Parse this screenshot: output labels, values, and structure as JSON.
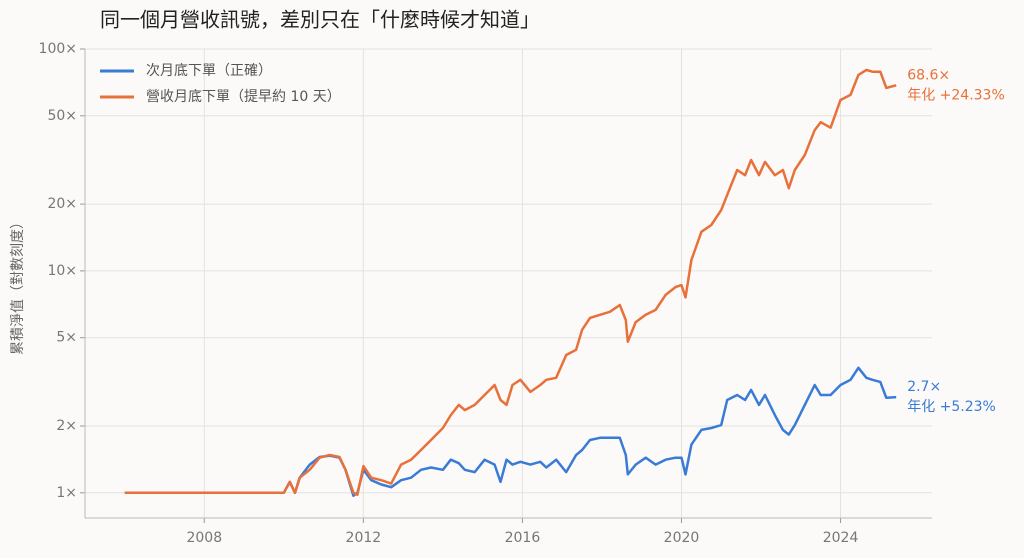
{
  "chart_data": {
    "type": "line",
    "title": "同一個月營收訊號，差別只在「什麼時候才知道」",
    "y_label": "累積淨值（對數刻度）",
    "log_y": true,
    "grid": true,
    "legend": "upper left",
    "xlim": [
      2005,
      2026.3
    ],
    "xticks": [
      2008,
      2012,
      2016,
      2020,
      2024
    ],
    "ylim": [
      0.77,
      100
    ],
    "yticks": [
      {
        "value": 1,
        "label": "1×"
      },
      {
        "value": 2,
        "label": "2×"
      },
      {
        "value": 5,
        "label": "5×"
      },
      {
        "value": 10,
        "label": "10×"
      },
      {
        "value": 20,
        "label": "20×"
      },
      {
        "value": 50,
        "label": "50×"
      },
      {
        "value": 100,
        "label": "100×"
      }
    ],
    "x": [
      2006,
      2010,
      2010.15,
      2010.28,
      2010.4,
      2010.65,
      2010.9,
      2011.15,
      2011.4,
      2011.55,
      2011.75,
      2011.85,
      2012.0,
      2012.2,
      2012.45,
      2012.7,
      2012.95,
      2013.2,
      2013.45,
      2013.7,
      2014.0,
      2014.2,
      2014.4,
      2014.55,
      2014.8,
      2015.05,
      2015.3,
      2015.45,
      2015.6,
      2015.75,
      2015.95,
      2016.2,
      2016.45,
      2016.6,
      2016.85,
      2017.1,
      2017.35,
      2017.5,
      2017.7,
      2017.95,
      2018.2,
      2018.45,
      2018.6,
      2018.65,
      2018.85,
      2019.1,
      2019.35,
      2019.6,
      2019.85,
      2020.0,
      2020.1,
      2020.25,
      2020.5,
      2020.75,
      2021.0,
      2021.15,
      2021.4,
      2021.6,
      2021.75,
      2021.95,
      2022.1,
      2022.35,
      2022.55,
      2022.7,
      2022.85,
      2023.1,
      2023.35,
      2023.5,
      2023.75,
      2024.0,
      2024.25,
      2024.45,
      2024.65,
      2024.8,
      2025.0,
      2025.15,
      2025.4
    ],
    "series": [
      {
        "name": "次月底下單（正確）",
        "color": "#3a7bd5",
        "values": [
          1,
          1,
          1.12,
          1.0,
          1.17,
          1.34,
          1.45,
          1.47,
          1.44,
          1.27,
          0.97,
          1.0,
          1.27,
          1.14,
          1.09,
          1.06,
          1.14,
          1.17,
          1.27,
          1.3,
          1.27,
          1.41,
          1.36,
          1.27,
          1.24,
          1.41,
          1.34,
          1.12,
          1.41,
          1.34,
          1.38,
          1.34,
          1.38,
          1.3,
          1.41,
          1.24,
          1.48,
          1.56,
          1.73,
          1.77,
          1.77,
          1.77,
          1.48,
          1.21,
          1.34,
          1.44,
          1.34,
          1.41,
          1.44,
          1.44,
          1.21,
          1.65,
          1.92,
          1.96,
          2.02,
          2.62,
          2.76,
          2.62,
          2.91,
          2.49,
          2.76,
          2.24,
          1.92,
          1.83,
          2.02,
          2.49,
          3.06,
          2.76,
          2.76,
          3.06,
          3.23,
          3.66,
          3.3,
          3.23,
          3.16,
          2.68,
          2.7
        ],
        "end_labels": [
          "2.7×",
          "年化 +5.23%"
        ]
      },
      {
        "name": "營收月底下單（提早約 10 天）",
        "color": "#e8703a",
        "values": [
          1,
          1,
          1.12,
          1.0,
          1.17,
          1.27,
          1.44,
          1.48,
          1.45,
          1.27,
          1.0,
          0.98,
          1.32,
          1.17,
          1.14,
          1.1,
          1.34,
          1.41,
          1.56,
          1.73,
          1.96,
          2.24,
          2.49,
          2.36,
          2.49,
          2.76,
          3.06,
          2.62,
          2.49,
          3.06,
          3.23,
          2.85,
          3.06,
          3.23,
          3.3,
          4.18,
          4.41,
          5.43,
          6.14,
          6.34,
          6.54,
          7.02,
          6.0,
          4.79,
          5.88,
          6.34,
          6.67,
          7.8,
          8.45,
          8.63,
          7.6,
          11.2,
          15.0,
          16.1,
          18.8,
          22.0,
          28.5,
          27.0,
          31.6,
          27.0,
          31.0,
          27.0,
          28.5,
          23.6,
          28.5,
          33.3,
          43.1,
          46.8,
          44.2,
          58.9,
          62.1,
          76.4,
          80.5,
          79.0,
          79.0,
          66.8,
          68.6
        ],
        "end_labels": [
          "68.6×",
          "年化 +24.33%"
        ]
      }
    ]
  }
}
